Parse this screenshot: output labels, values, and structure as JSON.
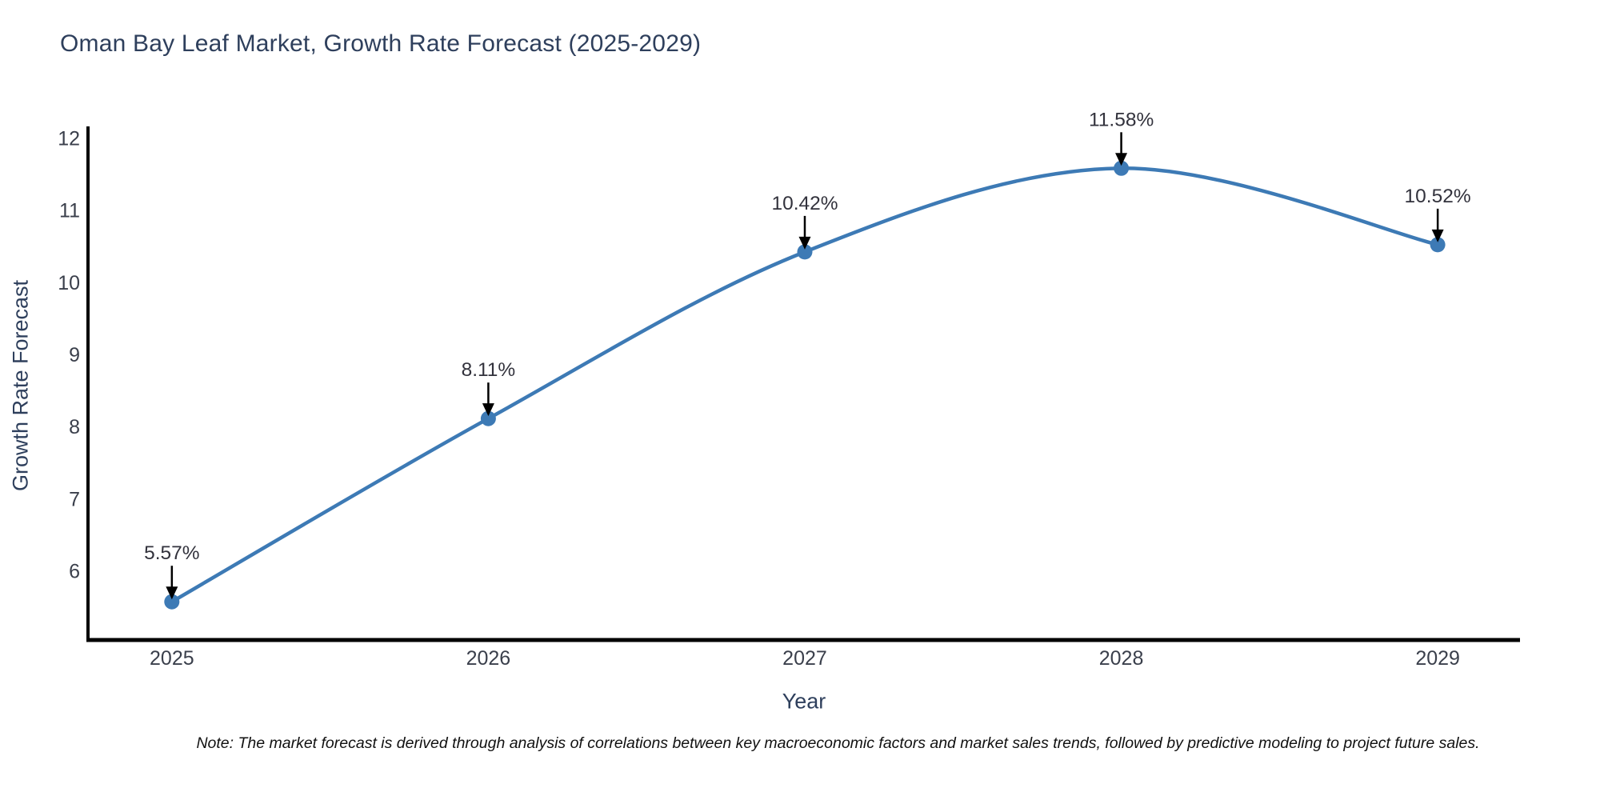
{
  "title": "Oman Bay Leaf Market, Growth Rate Forecast (2025-2029)",
  "footnote": "Note: The market forecast is derived through analysis of correlations between key macroeconomic factors and market sales trends, followed by predictive modeling to project future sales.",
  "chart_data": {
    "type": "line",
    "title": "Oman Bay Leaf Market, Growth Rate Forecast (2025-2029)",
    "xlabel": "Year",
    "ylabel": "Growth Rate Forecast",
    "x": [
      2025,
      2026,
      2027,
      2028,
      2029
    ],
    "x_tick_labels": [
      "2025",
      "2026",
      "2027",
      "2028",
      "2029"
    ],
    "y_ticks": [
      6,
      7,
      8,
      9,
      10,
      11,
      12
    ],
    "series": [
      {
        "name": "Growth Rate Forecast",
        "values": [
          5.57,
          8.11,
          10.42,
          11.58,
          10.52
        ]
      }
    ],
    "point_labels": [
      "5.57%",
      "8.11%",
      "10.42%",
      "11.58%",
      "10.52%"
    ],
    "xlim": [
      2024.735,
      2029.26
    ],
    "ylim": [
      5.04,
      12.16
    ],
    "grid": false,
    "legend": "none",
    "smooth": true
  },
  "colors": {
    "title": "#2e3f5c",
    "axis_line": "#000000",
    "tick_label": "#3a3f4b",
    "annotation_text": "#32323c",
    "annotation_arrow": "#000000",
    "line": "#3d7ab5",
    "marker": "#3d7ab5",
    "note": "#111111",
    "background": "#ffffff"
  }
}
